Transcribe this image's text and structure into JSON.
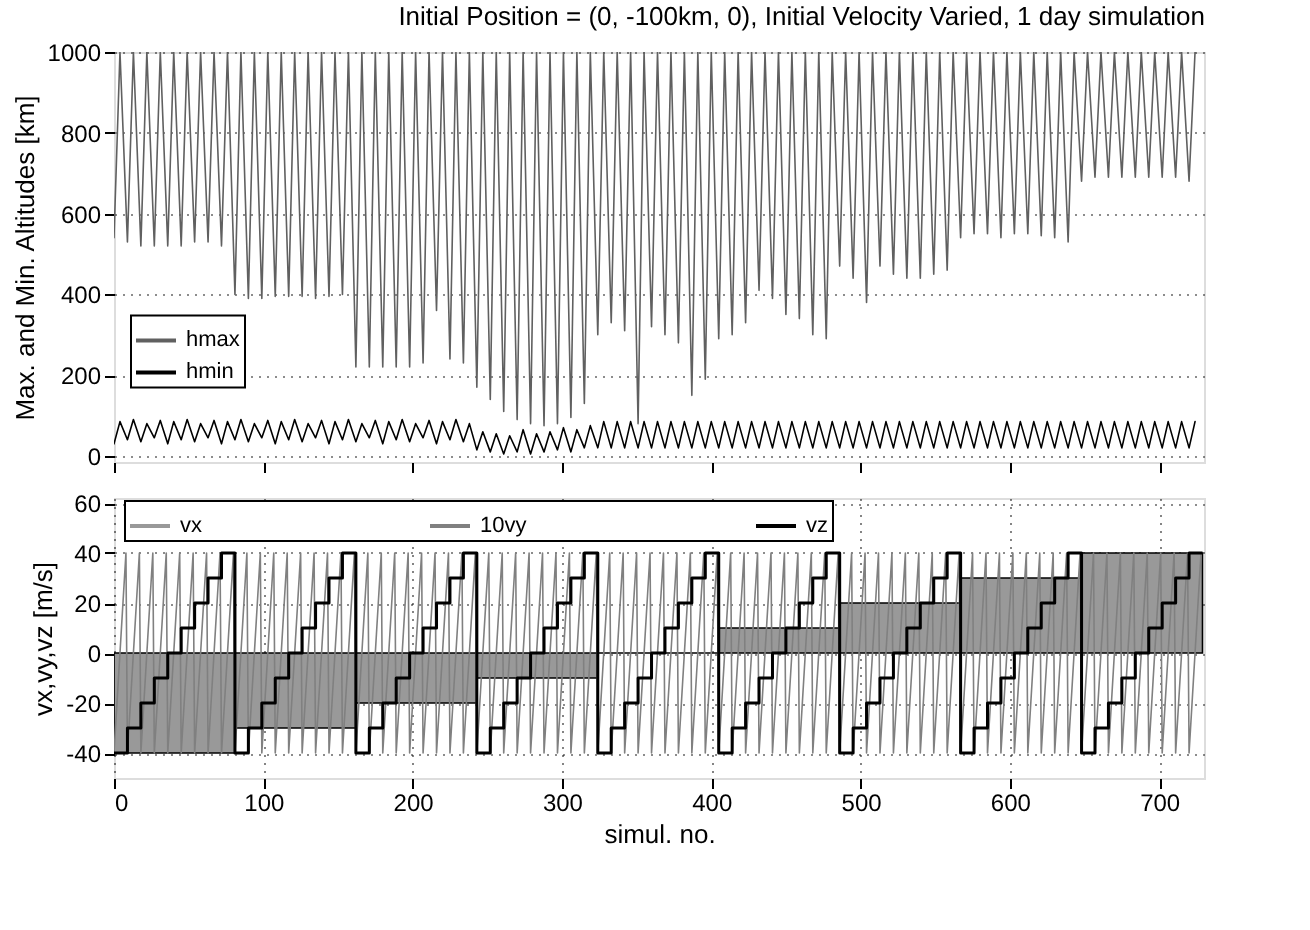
{
  "chart_data": [
    {
      "type": "line",
      "title": "Initial Position = (0, -100km, 0), Initial Velocity Varied, 1 day simulation",
      "ylabel": "Max. and Min. Altitudes [km]",
      "x": [
        0,
        4,
        9,
        13,
        18,
        22,
        27,
        31,
        36,
        40,
        45,
        49,
        54,
        58,
        63,
        67,
        72,
        76,
        81,
        85,
        90,
        94,
        99,
        103,
        108,
        112,
        117,
        121,
        126,
        130,
        135,
        139,
        144,
        148,
        153,
        157,
        162,
        166,
        171,
        175,
        180,
        184,
        189,
        193,
        198,
        202,
        207,
        211,
        216,
        220,
        225,
        229,
        234,
        238,
        243,
        247,
        252,
        256,
        261,
        265,
        270,
        274,
        279,
        283,
        288,
        292,
        297,
        301,
        306,
        310,
        315,
        319,
        324,
        328,
        333,
        337,
        342,
        346,
        351,
        355,
        360,
        364,
        369,
        373,
        378,
        382,
        387,
        391,
        396,
        400,
        405,
        409,
        414,
        418,
        423,
        427,
        432,
        436,
        441,
        445,
        450,
        454,
        459,
        463,
        468,
        472,
        477,
        481,
        486,
        490,
        495,
        499,
        504,
        508,
        513,
        517,
        522,
        526,
        531,
        535,
        540,
        544,
        549,
        553,
        558,
        562,
        567,
        571,
        576,
        580,
        585,
        589,
        594,
        598,
        603,
        607,
        612,
        616,
        621,
        625,
        630,
        634,
        639,
        643,
        648,
        652,
        657,
        661,
        666,
        670,
        675,
        679,
        684,
        688,
        693,
        697,
        702,
        706,
        711,
        715,
        720,
        724
      ],
      "series": [
        {
          "name": "hmax",
          "color": "#606060",
          "values": [
            540,
            1000,
            530,
            1000,
            520,
            1000,
            520,
            1000,
            520,
            1000,
            520,
            1000,
            530,
            1000,
            530,
            1000,
            520,
            1000,
            400,
            1000,
            390,
            1000,
            390,
            1000,
            395,
            1000,
            395,
            1000,
            395,
            1000,
            390,
            1000,
            395,
            1000,
            400,
            1000,
            220,
            1000,
            220,
            1000,
            220,
            1000,
            220,
            1000,
            220,
            1000,
            230,
            1000,
            360,
            1000,
            240,
            1000,
            230,
            1000,
            170,
            1000,
            140,
            1000,
            110,
            1000,
            90,
            1000,
            80,
            1000,
            75,
            1000,
            80,
            1000,
            95,
            1000,
            130,
            1000,
            300,
            1000,
            330,
            1000,
            310,
            1000,
            80,
            1000,
            320,
            1000,
            300,
            1000,
            280,
            1000,
            150,
            1000,
            190,
            1000,
            290,
            1000,
            300,
            1000,
            330,
            1000,
            410,
            1000,
            390,
            1000,
            350,
            1000,
            340,
            1000,
            300,
            1000,
            290,
            1000,
            470,
            1000,
            440,
            1000,
            380,
            1000,
            470,
            1000,
            450,
            1000,
            440,
            1000,
            440,
            1000,
            450,
            1000,
            460,
            1000,
            540,
            1000,
            550,
            1000,
            550,
            1000,
            540,
            1000,
            550,
            1000,
            550,
            1000,
            545,
            1000,
            540,
            1000,
            530,
            1000,
            680,
            1000,
            690,
            1000,
            690,
            1000,
            690,
            1000,
            690,
            1000,
            690,
            1000,
            690,
            1000,
            690,
            1000,
            680,
            1000
          ]
        },
        {
          "name": "hmin",
          "color": "#000000",
          "values": [
            30,
            85,
            40,
            90,
            35,
            80,
            45,
            88,
            30,
            85,
            40,
            90,
            35,
            80,
            45,
            88,
            30,
            85,
            40,
            90,
            35,
            80,
            45,
            88,
            30,
            85,
            40,
            90,
            35,
            80,
            45,
            88,
            30,
            85,
            40,
            90,
            35,
            80,
            45,
            88,
            30,
            85,
            40,
            90,
            35,
            80,
            45,
            88,
            30,
            85,
            40,
            90,
            35,
            80,
            15,
            60,
            10,
            55,
            5,
            50,
            10,
            65,
            5,
            55,
            10,
            60,
            15,
            70,
            10,
            65,
            20,
            75,
            20,
            85,
            20,
            85,
            20,
            85,
            20,
            85,
            20,
            85,
            20,
            85,
            20,
            85,
            20,
            85,
            20,
            85,
            20,
            85,
            20,
            85,
            20,
            85,
            20,
            85,
            20,
            85,
            20,
            85,
            20,
            85,
            20,
            85,
            20,
            85,
            20,
            85,
            20,
            85,
            20,
            85,
            20,
            85,
            20,
            85,
            20,
            85,
            20,
            85,
            20,
            85,
            20,
            85,
            20,
            85,
            20,
            85,
            20,
            85,
            20,
            85,
            20,
            85,
            20,
            85,
            20,
            85,
            20,
            85,
            20,
            85,
            20,
            85,
            20,
            85,
            20,
            85,
            20,
            85,
            20,
            85,
            20,
            85,
            20,
            85,
            20,
            85,
            20,
            85
          ]
        }
      ],
      "xlim": [
        0,
        730
      ],
      "xticks": [
        0,
        100,
        200,
        300,
        400,
        500,
        600,
        700
      ],
      "ylim": [
        -15,
        1000
      ],
      "yticks": [
        0,
        200,
        400,
        600,
        800,
        1000
      ],
      "grid": "y",
      "legend": "left",
      "tick_labels": "y"
    },
    {
      "type": "line",
      "xlabel": "simul. no.",
      "ylabel": "vx,vy,vz [m/s]",
      "series": [
        {
          "name": "vx",
          "type": "area",
          "color": "#999999",
          "x": [
            0,
            81,
            81,
            162,
            162,
            243,
            243,
            324,
            324,
            405,
            405,
            486,
            486,
            567,
            567,
            648,
            648,
            729
          ],
          "values": [
            -40,
            -40,
            -30,
            -30,
            -20,
            -20,
            -10,
            -10,
            0,
            0,
            10,
            10,
            20,
            20,
            30,
            30,
            40,
            40
          ]
        },
        {
          "name": "10vy",
          "type": "line",
          "color": "#808080",
          "x": [
            0,
            8,
            9,
            17,
            18,
            26,
            27,
            35,
            36,
            44,
            45,
            53,
            54,
            62,
            63,
            71,
            72,
            80,
            81,
            89,
            90,
            98,
            99,
            107,
            108,
            116,
            117,
            125,
            126,
            134,
            135,
            143,
            144,
            152,
            153,
            161,
            162,
            170,
            171,
            179,
            180,
            188,
            189,
            197,
            198,
            206,
            207,
            215,
            216,
            224,
            225,
            233,
            234,
            242,
            243,
            251,
            252,
            260,
            261,
            269,
            270,
            278,
            279,
            287,
            288,
            296,
            297,
            305,
            306,
            314,
            315,
            323,
            324,
            332,
            333,
            341,
            342,
            350,
            351,
            359,
            360,
            368,
            369,
            377,
            378,
            386,
            387,
            395,
            396,
            404,
            405,
            413,
            414,
            422,
            423,
            431,
            432,
            440,
            441,
            449,
            450,
            458,
            459,
            467,
            468,
            476,
            477,
            485,
            486,
            494,
            495,
            503,
            504,
            512,
            513,
            521,
            522,
            530,
            531,
            539,
            540,
            548,
            549,
            557,
            558,
            566,
            567,
            575,
            576,
            584,
            585,
            593,
            594,
            602,
            603,
            611,
            612,
            620,
            621,
            629,
            630,
            638,
            639,
            647,
            648,
            656,
            657,
            665,
            666,
            674,
            675,
            683,
            684,
            692,
            693,
            701,
            702,
            710,
            711,
            719,
            720,
            728
          ],
          "values": [
            -40,
            40,
            -40,
            40,
            -40,
            40,
            -40,
            40,
            -40,
            40,
            -40,
            40,
            -40,
            40,
            -40,
            40,
            -40,
            40,
            -40,
            40,
            -40,
            40,
            -40,
            40,
            -40,
            40,
            -40,
            40,
            -40,
            40,
            -40,
            40,
            -40,
            40,
            -40,
            40,
            -40,
            40,
            -40,
            40,
            -40,
            40,
            -40,
            40,
            -40,
            40,
            -40,
            40,
            -40,
            40,
            -40,
            40,
            -40,
            40,
            -40,
            40,
            -40,
            40,
            -40,
            40,
            -40,
            40,
            -40,
            40,
            -40,
            40,
            -40,
            40,
            -40,
            40,
            -40,
            40,
            -40,
            40,
            -40,
            40,
            -40,
            40,
            -40,
            40,
            -40,
            40,
            -40,
            40,
            -40,
            40,
            -40,
            40,
            -40,
            40,
            -40,
            40,
            -40,
            40,
            -40,
            40,
            -40,
            40,
            -40,
            40,
            -40,
            40,
            -40,
            40,
            -40,
            40,
            -40,
            40,
            -40,
            40,
            -40,
            40,
            -40,
            40,
            -40,
            40,
            -40,
            40,
            -40,
            40,
            -40,
            40,
            -40,
            40,
            -40,
            40,
            -40,
            40,
            -40,
            40,
            -40,
            40,
            -40,
            40,
            -40,
            40,
            -40,
            40,
            -40,
            40,
            -40,
            40,
            -40,
            40,
            -40,
            40,
            -40,
            40,
            -40,
            40,
            -40,
            40,
            -40,
            40,
            -40,
            40,
            -40,
            40,
            -40,
            40,
            -40,
            40
          ]
        },
        {
          "name": "vz",
          "type": "step",
          "color": "#000000",
          "x": [
            0,
            9,
            18,
            27,
            36,
            45,
            54,
            63,
            72,
            81,
            90,
            99,
            108,
            117,
            126,
            135,
            144,
            153,
            162,
            171,
            180,
            189,
            198,
            207,
            216,
            225,
            234,
            243,
            252,
            261,
            270,
            279,
            288,
            297,
            306,
            315,
            324,
            333,
            342,
            351,
            360,
            369,
            378,
            387,
            396,
            405,
            414,
            423,
            432,
            441,
            450,
            459,
            468,
            477,
            486,
            495,
            504,
            513,
            522,
            531,
            540,
            549,
            558,
            567,
            576,
            585,
            594,
            603,
            612,
            621,
            630,
            639,
            648,
            657,
            666,
            675,
            684,
            693,
            702,
            711,
            720,
            729
          ],
          "values": [
            -40,
            -30,
            -20,
            -10,
            0,
            10,
            20,
            30,
            40,
            -40,
            -30,
            -20,
            -10,
            0,
            10,
            20,
            30,
            40,
            -40,
            -30,
            -20,
            -10,
            0,
            10,
            20,
            30,
            40,
            -40,
            -30,
            -20,
            -10,
            0,
            10,
            20,
            30,
            40,
            -40,
            -30,
            -20,
            -10,
            0,
            10,
            20,
            30,
            40,
            -40,
            -30,
            -20,
            -10,
            0,
            10,
            20,
            30,
            40,
            -40,
            -30,
            -20,
            -10,
            0,
            10,
            20,
            30,
            40,
            -40,
            -30,
            -20,
            -10,
            0,
            10,
            20,
            30,
            40,
            -40,
            -30,
            -20,
            -10,
            0,
            10,
            20,
            30,
            40,
            40
          ]
        }
      ],
      "xlim": [
        0,
        730
      ],
      "xticks": [
        0,
        100,
        200,
        300,
        400,
        500,
        600,
        700
      ],
      "ylim": [
        -50,
        62
      ],
      "yticks": [
        -40,
        -20,
        0,
        20,
        40,
        60
      ],
      "grid": true,
      "legend": "top"
    }
  ]
}
